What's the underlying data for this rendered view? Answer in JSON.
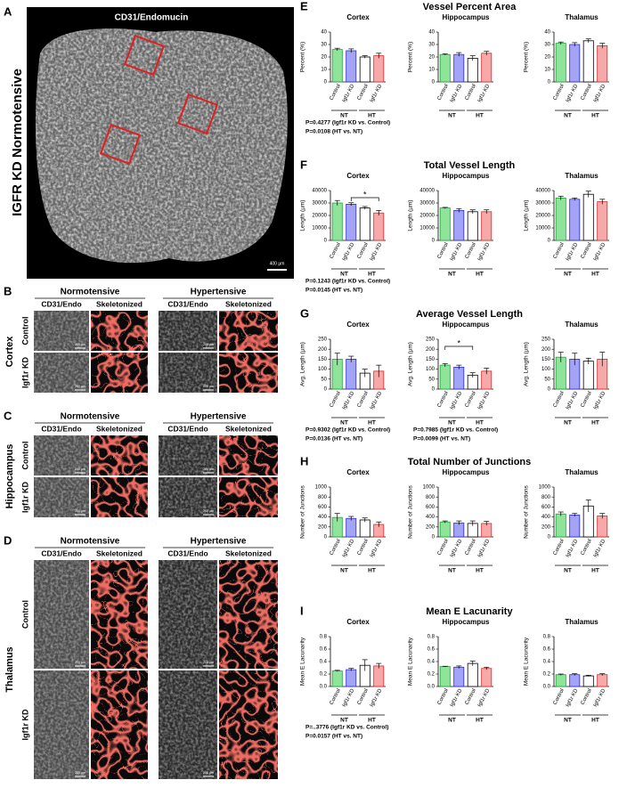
{
  "figure": {
    "panel_a": {
      "letter": "A",
      "title": "CD31/Endomucin",
      "label": "IGFR KD Normotensive",
      "scale": "400 µm"
    },
    "image_panels": [
      {
        "letter": "B",
        "region": "Cortex",
        "conditions": [
          "Normotensive",
          "Hypertensive"
        ],
        "columns": [
          "CD31/Endo",
          "Skeletonized",
          "CD31/Endo",
          "Skeletonized"
        ],
        "rows": [
          "Control",
          "Igf1r KD"
        ],
        "scale": "200 µm"
      },
      {
        "letter": "C",
        "region": "Hippocampus",
        "conditions": [
          "Normotensive",
          "Hypertensive"
        ],
        "columns": [
          "CD31/Endo",
          "Skeletonized",
          "CD31/Endo",
          "Skeletonized"
        ],
        "rows": [
          "Control",
          "Igf1r KD"
        ],
        "scale": "200 µm"
      },
      {
        "letter": "D",
        "region": "Thalamus",
        "conditions": [
          "Normotensive",
          "Hypertensive"
        ],
        "columns": [
          "CD31/Endo",
          "Skeletonized",
          "CD31/Endo",
          "Skeletonized"
        ],
        "rows": [
          "Control",
          "Igf1r KD"
        ],
        "scale": "200 µm"
      }
    ],
    "panels": [
      {
        "letter": "E",
        "title": "Vessel Percent Area"
      },
      {
        "letter": "F",
        "title": "Total Vessel Length"
      },
      {
        "letter": "G",
        "title": "Average Vessel Length"
      },
      {
        "letter": "H",
        "title": "Total Number of Junctions"
      },
      {
        "letter": "I",
        "title": "Mean E Lacunarity"
      }
    ]
  },
  "chart_data": [
    {
      "type": "bar",
      "title": "Cortex",
      "ylabel": "Percent (%)",
      "categories": [
        "Control",
        "Igf1r KD",
        "Control",
        "Igf1r KD"
      ],
      "groups": [
        "NT",
        "HT"
      ],
      "colors": [
        "#8ee59a",
        "#a3a3f7",
        "#ffffff",
        "#f7a8a8"
      ],
      "edge_colors": [
        "#22a23a",
        "#2a2ad6",
        "#000000",
        "#d62a2a"
      ],
      "values": [
        26,
        25,
        20,
        21
      ],
      "errors": [
        1,
        1.5,
        1,
        2
      ],
      "ylim": [
        0,
        40
      ],
      "yticks": [
        0,
        10,
        20,
        30,
        40
      ],
      "notes": [
        "P=0.4277 (Igf1r KD vs. Control)",
        "P=0.0108 (HT vs. NT)"
      ]
    },
    {
      "type": "bar",
      "title": "Hippocampus",
      "ylabel": "Percent (%)",
      "categories": [
        "Control",
        "Igf1r KD",
        "Control",
        "Igf1r KD"
      ],
      "groups": [
        "NT",
        "HT"
      ],
      "colors": [
        "#8ee59a",
        "#a3a3f7",
        "#ffffff",
        "#f7a8a8"
      ],
      "edge_colors": [
        "#22a23a",
        "#2a2ad6",
        "#000000",
        "#d62a2a"
      ],
      "values": [
        22,
        22,
        19,
        23
      ],
      "errors": [
        0.5,
        1.5,
        2,
        1.5
      ],
      "ylim": [
        0,
        40
      ],
      "yticks": [
        0,
        10,
        20,
        30,
        40
      ]
    },
    {
      "type": "bar",
      "title": "Thalamus",
      "ylabel": "Percent (%)",
      "categories": [
        "Control",
        "Igf1r KD",
        "Control",
        "Igf1r KD"
      ],
      "groups": [
        "NT",
        "HT"
      ],
      "colors": [
        "#8ee59a",
        "#a3a3f7",
        "#ffffff",
        "#f7a8a8"
      ],
      "edge_colors": [
        "#22a23a",
        "#2a2ad6",
        "#000000",
        "#d62a2a"
      ],
      "values": [
        31,
        30,
        33,
        29
      ],
      "errors": [
        1,
        1.5,
        1.5,
        2
      ],
      "ylim": [
        0,
        40
      ],
      "yticks": [
        0,
        10,
        20,
        30,
        40
      ]
    },
    {
      "type": "bar",
      "title": "Cortex",
      "ylabel": "Length (µm)",
      "categories": [
        "Control",
        "Igf1r KD",
        "Control",
        "Igf1r KD"
      ],
      "groups": [
        "NT",
        "HT"
      ],
      "colors": [
        "#8ee59a",
        "#a3a3f7",
        "#ffffff",
        "#f7a8a8"
      ],
      "edge_colors": [
        "#22a23a",
        "#2a2ad6",
        "#000000",
        "#d62a2a"
      ],
      "values": [
        30000,
        29000,
        26000,
        22000
      ],
      "errors": [
        2000,
        1200,
        1200,
        2000
      ],
      "ylim": [
        0,
        40000
      ],
      "yticks": [
        0,
        10000,
        20000,
        30000,
        40000
      ],
      "annotation": "*",
      "notes": [
        "P=0.1243 (Igf1r KD vs. Control)",
        "P=0.0145 (HT vs. NT)"
      ]
    },
    {
      "type": "bar",
      "title": "Hippocampus",
      "ylabel": "Length (µm)",
      "categories": [
        "Control",
        "Igf1r KD",
        "Control",
        "Igf1r KD"
      ],
      "groups": [
        "NT",
        "HT"
      ],
      "colors": [
        "#8ee59a",
        "#a3a3f7",
        "#ffffff",
        "#f7a8a8"
      ],
      "edge_colors": [
        "#22a23a",
        "#2a2ad6",
        "#000000",
        "#d62a2a"
      ],
      "values": [
        26000,
        24000,
        23000,
        23000
      ],
      "errors": [
        500,
        1500,
        1500,
        1500
      ],
      "ylim": [
        0,
        40000
      ],
      "yticks": [
        0,
        10000,
        20000,
        30000,
        40000
      ]
    },
    {
      "type": "bar",
      "title": "Thalamus",
      "ylabel": "Length (µm)",
      "categories": [
        "Control",
        "Igf1r KD",
        "Control",
        "Igf1r KD"
      ],
      "groups": [
        "NT",
        "HT"
      ],
      "colors": [
        "#8ee59a",
        "#a3a3f7",
        "#ffffff",
        "#f7a8a8"
      ],
      "edge_colors": [
        "#22a23a",
        "#2a2ad6",
        "#000000",
        "#d62a2a"
      ],
      "values": [
        34000,
        33000,
        37000,
        31000
      ],
      "errors": [
        1500,
        1000,
        2500,
        2000
      ],
      "ylim": [
        0,
        40000
      ],
      "yticks": [
        0,
        10000,
        20000,
        30000,
        40000
      ]
    },
    {
      "type": "bar",
      "title": "Cortex",
      "ylabel": "Avg. Length (µm)",
      "categories": [
        "Control",
        "Igf1r KD",
        "Control",
        "Igf1r KD"
      ],
      "groups": [
        "NT",
        "HT"
      ],
      "colors": [
        "#8ee59a",
        "#a3a3f7",
        "#ffffff",
        "#f7a8a8"
      ],
      "edge_colors": [
        "#22a23a",
        "#2a2ad6",
        "#000000",
        "#d62a2a"
      ],
      "values": [
        150,
        150,
        80,
        90
      ],
      "errors": [
        30,
        15,
        20,
        30
      ],
      "ylim": [
        0,
        250
      ],
      "yticks": [
        0,
        50,
        100,
        150,
        200,
        250
      ],
      "notes": [
        "P=0.9302 (Igf1r KD vs. Control)",
        "P=0.0136 (HT vs. NT)"
      ]
    },
    {
      "type": "bar",
      "title": "Hippocampus",
      "ylabel": "Avg. Length (µm)",
      "categories": [
        "Control",
        "Igf1r KD",
        "Control",
        "Igf1r KD"
      ],
      "groups": [
        "NT",
        "HT"
      ],
      "colors": [
        "#8ee59a",
        "#a3a3f7",
        "#ffffff",
        "#f7a8a8"
      ],
      "edge_colors": [
        "#22a23a",
        "#2a2ad6",
        "#000000",
        "#d62a2a"
      ],
      "values": [
        120,
        110,
        70,
        90
      ],
      "errors": [
        8,
        10,
        12,
        15
      ],
      "ylim": [
        0,
        250
      ],
      "yticks": [
        0,
        50,
        100,
        150,
        200,
        250
      ],
      "annotation": "*",
      "notes": [
        "P=0.7985 (Igf1r KD vs. Control)",
        "P=0.0099 (HT vs. NT)"
      ]
    },
    {
      "type": "bar",
      "title": "Thalamus",
      "ylabel": "Avg. Length (µm)",
      "categories": [
        "Control",
        "Igf1r KD",
        "Control",
        "Igf1r KD"
      ],
      "groups": [
        "NT",
        "HT"
      ],
      "colors": [
        "#8ee59a",
        "#a3a3f7",
        "#ffffff",
        "#f7a8a8"
      ],
      "edge_colors": [
        "#22a23a",
        "#2a2ad6",
        "#000000",
        "#d62a2a"
      ],
      "values": [
        160,
        150,
        140,
        150
      ],
      "errors": [
        25,
        30,
        15,
        35
      ],
      "ylim": [
        0,
        250
      ],
      "yticks": [
        0,
        50,
        100,
        150,
        200,
        250
      ]
    },
    {
      "type": "bar",
      "title": "Cortex",
      "ylabel": "Number of Junctions",
      "categories": [
        "Control",
        "Igf1r KD",
        "Control",
        "Igf1r KD"
      ],
      "groups": [
        "NT",
        "HT"
      ],
      "colors": [
        "#8ee59a",
        "#a3a3f7",
        "#ffffff",
        "#f7a8a8"
      ],
      "edge_colors": [
        "#22a23a",
        "#2a2ad6",
        "#000000",
        "#d62a2a"
      ],
      "values": [
        390,
        370,
        340,
        250
      ],
      "errors": [
        80,
        40,
        40,
        50
      ],
      "ylim": [
        0,
        1000
      ],
      "yticks": [
        0,
        200,
        400,
        600,
        800,
        1000
      ]
    },
    {
      "type": "bar",
      "title": "Hippocampus",
      "ylabel": "Number of Junctions",
      "categories": [
        "Control",
        "Igf1r KD",
        "Control",
        "Igf1r KD"
      ],
      "groups": [
        "NT",
        "HT"
      ],
      "colors": [
        "#8ee59a",
        "#a3a3f7",
        "#ffffff",
        "#f7a8a8"
      ],
      "edge_colors": [
        "#22a23a",
        "#2a2ad6",
        "#000000",
        "#d62a2a"
      ],
      "values": [
        300,
        280,
        270,
        270
      ],
      "errors": [
        20,
        40,
        50,
        40
      ],
      "ylim": [
        0,
        1000
      ],
      "yticks": [
        0,
        200,
        400,
        600,
        800,
        1000
      ]
    },
    {
      "type": "bar",
      "title": "Thalamus",
      "ylabel": "Number of Junctions",
      "categories": [
        "Control",
        "Igf1r KD",
        "Control",
        "Igf1r KD"
      ],
      "groups": [
        "NT",
        "HT"
      ],
      "colors": [
        "#8ee59a",
        "#a3a3f7",
        "#ffffff",
        "#f7a8a8"
      ],
      "edge_colors": [
        "#22a23a",
        "#2a2ad6",
        "#000000",
        "#d62a2a"
      ],
      "values": [
        460,
        440,
        620,
        420
      ],
      "errors": [
        40,
        30,
        120,
        50
      ],
      "ylim": [
        0,
        1000
      ],
      "yticks": [
        0,
        200,
        400,
        600,
        800,
        1000
      ]
    },
    {
      "type": "bar",
      "title": "Cortex",
      "ylabel": "Mean E Lacunarity",
      "categories": [
        "Control",
        "Igf1r KD",
        "Control",
        "Igf1r KD"
      ],
      "groups": [
        "NT",
        "HT"
      ],
      "colors": [
        "#8ee59a",
        "#a3a3f7",
        "#ffffff",
        "#f7a8a8"
      ],
      "edge_colors": [
        "#22a23a",
        "#2a2ad6",
        "#000000",
        "#d62a2a"
      ],
      "values": [
        0.25,
        0.27,
        0.34,
        0.33
      ],
      "errors": [
        0.01,
        0.02,
        0.09,
        0.04
      ],
      "ylim": [
        0,
        0.8
      ],
      "yticks": [
        {
          "value": 0,
          "label": "0.0"
        },
        0.2,
        0.4,
        0.6,
        {
          "value": 0.8,
          "label": "0.8"
        }
      ],
      "notes": [
        "P=..3776 (Igf1r KD vs. Control)",
        "P=0.0157 (HT vs. NT)"
      ]
    },
    {
      "type": "bar",
      "title": "Hippocampus",
      "ylabel": "Mean E Lacunarity",
      "categories": [
        "Control",
        "Igf1r KD",
        "Control",
        "Igf1r KD"
      ],
      "groups": [
        "NT",
        "HT"
      ],
      "colors": [
        "#8ee59a",
        "#a3a3f7",
        "#ffffff",
        "#f7a8a8"
      ],
      "edge_colors": [
        "#22a23a",
        "#2a2ad6",
        "#000000",
        "#d62a2a"
      ],
      "values": [
        0.32,
        0.31,
        0.37,
        0.29
      ],
      "errors": [
        0.005,
        0.02,
        0.04,
        0.02
      ],
      "ylim": [
        0,
        0.8
      ],
      "yticks": [
        {
          "value": 0,
          "label": "0.0"
        },
        0.2,
        0.4,
        0.6,
        {
          "value": 0.8,
          "label": "0.8"
        }
      ]
    },
    {
      "type": "bar",
      "title": "Thalamus",
      "ylabel": "Mean E Lacunarity",
      "categories": [
        "Control",
        "Igf1r KD",
        "Control",
        "Igf1r KD"
      ],
      "groups": [
        "NT",
        "HT"
      ],
      "colors": [
        "#8ee59a",
        "#a3a3f7",
        "#ffffff",
        "#f7a8a8"
      ],
      "edge_colors": [
        "#22a23a",
        "#2a2ad6",
        "#000000",
        "#d62a2a"
      ],
      "values": [
        0.19,
        0.19,
        0.17,
        0.19
      ],
      "errors": [
        0.01,
        0.015,
        0.01,
        0.015
      ],
      "ylim": [
        0,
        0.8
      ],
      "yticks": [
        {
          "value": 0,
          "label": "0.0"
        },
        0.2,
        0.4,
        0.6,
        {
          "value": 0.8,
          "label": "0.8"
        }
      ]
    }
  ]
}
